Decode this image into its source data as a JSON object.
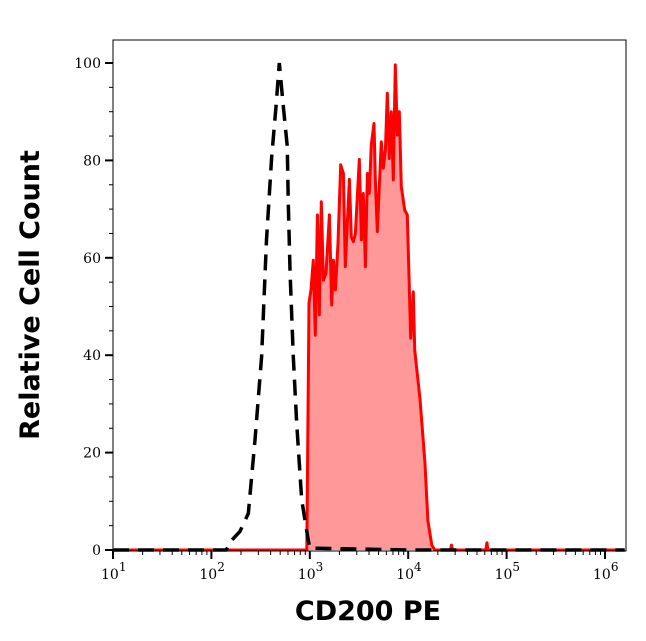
{
  "chart_data": {
    "type": "area",
    "title": "",
    "xlabel": "CD200 PE",
    "ylabel": "Relative Cell Count",
    "xscale": "log",
    "xlim": [
      10,
      1600000
    ],
    "ylim": [
      0,
      105
    ],
    "grid": false,
    "x_ticks": [
      {
        "base": "10",
        "exp": "1",
        "value": 10
      },
      {
        "base": "10",
        "exp": "2",
        "value": 100
      },
      {
        "base": "10",
        "exp": "3",
        "value": 1000
      },
      {
        "base": "10",
        "exp": "4",
        "value": 10000
      },
      {
        "base": "10",
        "exp": "5",
        "value": 100000
      },
      {
        "base": "10",
        "exp": "6",
        "value": 1000000
      }
    ],
    "y_ticks": [
      "0",
      "20",
      "40",
      "60",
      "80",
      "100"
    ],
    "series": [
      {
        "style": "dashed-line",
        "color": "#000000",
        "log10_x": [
          1.0,
          2.15,
          2.206,
          2.29,
          2.375,
          2.443,
          2.51,
          2.56,
          2.613,
          2.657,
          2.69,
          2.725,
          2.771,
          2.78,
          2.8,
          2.832,
          2.867,
          2.918,
          2.985,
          3.0,
          4.0,
          6.2
        ],
        "y": [
          0,
          0,
          2.0,
          3.8,
          7.5,
          22.6,
          39.7,
          63.7,
          80.8,
          91.0,
          100,
          92.4,
          82.8,
          71.9,
          56.8,
          39.7,
          26.0,
          10.3,
          2.0,
          0.4,
          0,
          0
        ]
      },
      {
        "style": "filled-area",
        "color": "#ff0000",
        "fill": "#ff9999",
        "log10_x": [
          1.0,
          2.97,
          2.992,
          3.012,
          3.036,
          3.056,
          3.077,
          3.097,
          3.117,
          3.138,
          3.165,
          3.199,
          3.223,
          3.24,
          3.26,
          3.287,
          3.314,
          3.341,
          3.361,
          3.402,
          3.422,
          3.443,
          3.463,
          3.503,
          3.524,
          3.544,
          3.565,
          3.585,
          3.605,
          3.625,
          3.652,
          3.666,
          3.686,
          3.727,
          3.747,
          3.768,
          3.788,
          3.808,
          3.828,
          3.849,
          3.869,
          3.889,
          3.91,
          3.93,
          3.964,
          3.991,
          4.025,
          4.052,
          4.066,
          4.12,
          4.17,
          4.2,
          4.24,
          4.27,
          4.43,
          4.44,
          4.45,
          4.79,
          4.8,
          4.81,
          6.2
        ],
        "y": [
          0,
          0,
          50.7,
          53.4,
          59.5,
          44.1,
          68.8,
          48.3,
          71.5,
          55.4,
          56.8,
          68.8,
          50.3,
          59.5,
          53.4,
          63.0,
          79.1,
          77.3,
          58.2,
          76.1,
          64.3,
          63.3,
          65.0,
          80.2,
          63.7,
          73.2,
          58.2,
          77.3,
          73.2,
          83.2,
          87.6,
          76.3,
          65.4,
          83.8,
          78.4,
          82.1,
          93.8,
          80.4,
          90.0,
          76.0,
          99.6,
          85.2,
          90.0,
          74.6,
          69.8,
          68.8,
          43.5,
          53.0,
          41.1,
          31,
          18,
          6,
          1,
          0,
          0,
          1,
          0,
          0,
          1.5,
          0,
          0
        ]
      }
    ]
  }
}
